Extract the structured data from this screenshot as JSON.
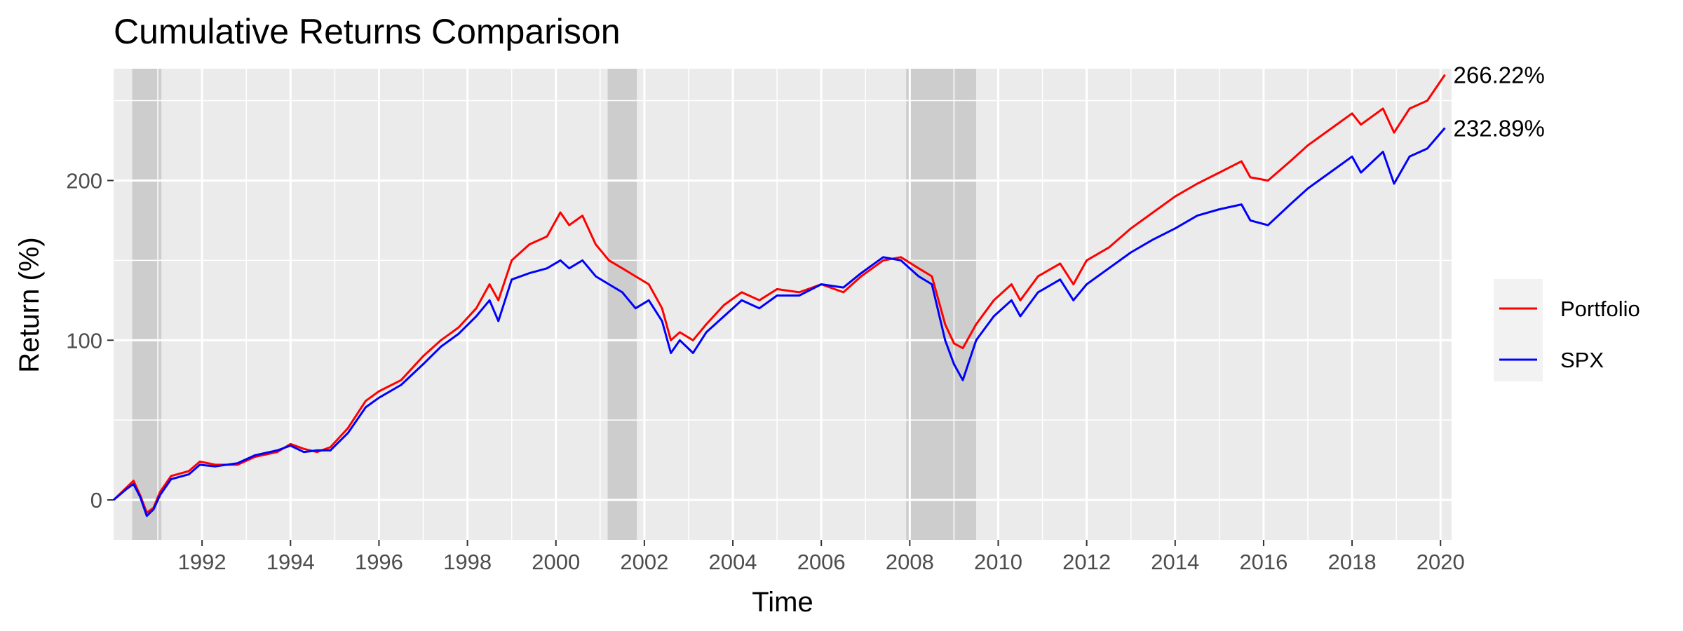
{
  "chart_data": {
    "type": "line",
    "title": "Cumulative Returns Comparison",
    "xlabel": "Time",
    "ylabel": "Return (%)",
    "xlim": [
      1990.0,
      2020.25
    ],
    "ylim": [
      -25,
      270
    ],
    "x_ticks": [
      "1992",
      "1994",
      "1996",
      "1998",
      "2000",
      "2002",
      "2004",
      "2006",
      "2008",
      "2010",
      "2012",
      "2014",
      "2016",
      "2018",
      "2020"
    ],
    "y_ticks": [
      "0",
      "100",
      "200"
    ],
    "grid": true,
    "legend_position": "right",
    "shaded_periods": [
      [
        1990.42,
        1991.08
      ],
      [
        2001.17,
        2001.83
      ],
      [
        2007.92,
        2009.5
      ]
    ],
    "end_labels": [
      {
        "series": "Portfolio",
        "text": "266.22%"
      },
      {
        "series": "SPX",
        "text": "232.89%"
      }
    ],
    "series": [
      {
        "name": "Portfolio",
        "color": "#ff0000",
        "points": [
          [
            1990.0,
            0
          ],
          [
            1990.3,
            8
          ],
          [
            1990.45,
            12
          ],
          [
            1990.6,
            3
          ],
          [
            1990.75,
            -8
          ],
          [
            1990.9,
            -5
          ],
          [
            1991.05,
            5
          ],
          [
            1991.3,
            15
          ],
          [
            1991.7,
            18
          ],
          [
            1991.95,
            24
          ],
          [
            1992.3,
            22
          ],
          [
            1992.8,
            22
          ],
          [
            1993.2,
            27
          ],
          [
            1993.7,
            30
          ],
          [
            1994.0,
            35
          ],
          [
            1994.3,
            32
          ],
          [
            1994.6,
            30
          ],
          [
            1994.9,
            33
          ],
          [
            1995.3,
            45
          ],
          [
            1995.7,
            62
          ],
          [
            1996.0,
            68
          ],
          [
            1996.5,
            75
          ],
          [
            1997.0,
            90
          ],
          [
            1997.4,
            100
          ],
          [
            1997.8,
            108
          ],
          [
            1998.2,
            120
          ],
          [
            1998.5,
            135
          ],
          [
            1998.7,
            125
          ],
          [
            1999.0,
            150
          ],
          [
            1999.4,
            160
          ],
          [
            1999.8,
            165
          ],
          [
            2000.1,
            180
          ],
          [
            2000.3,
            172
          ],
          [
            2000.6,
            178
          ],
          [
            2000.9,
            160
          ],
          [
            2001.2,
            150
          ],
          [
            2001.5,
            145
          ],
          [
            2001.8,
            140
          ],
          [
            2002.1,
            135
          ],
          [
            2002.4,
            120
          ],
          [
            2002.6,
            100
          ],
          [
            2002.8,
            105
          ],
          [
            2003.1,
            100
          ],
          [
            2003.4,
            110
          ],
          [
            2003.8,
            122
          ],
          [
            2004.2,
            130
          ],
          [
            2004.6,
            125
          ],
          [
            2005.0,
            132
          ],
          [
            2005.5,
            130
          ],
          [
            2006.0,
            135
          ],
          [
            2006.5,
            130
          ],
          [
            2006.9,
            140
          ],
          [
            2007.4,
            150
          ],
          [
            2007.8,
            152
          ],
          [
            2008.2,
            145
          ],
          [
            2008.5,
            140
          ],
          [
            2008.8,
            110
          ],
          [
            2009.0,
            98
          ],
          [
            2009.2,
            95
          ],
          [
            2009.5,
            110
          ],
          [
            2009.9,
            125
          ],
          [
            2010.3,
            135
          ],
          [
            2010.5,
            125
          ],
          [
            2010.9,
            140
          ],
          [
            2011.4,
            148
          ],
          [
            2011.7,
            135
          ],
          [
            2012.0,
            150
          ],
          [
            2012.5,
            158
          ],
          [
            2013.0,
            170
          ],
          [
            2013.5,
            180
          ],
          [
            2014.0,
            190
          ],
          [
            2014.5,
            198
          ],
          [
            2015.0,
            205
          ],
          [
            2015.5,
            212
          ],
          [
            2015.7,
            202
          ],
          [
            2016.1,
            200
          ],
          [
            2016.6,
            212
          ],
          [
            2017.0,
            222
          ],
          [
            2017.5,
            232
          ],
          [
            2018.0,
            242
          ],
          [
            2018.2,
            235
          ],
          [
            2018.7,
            245
          ],
          [
            2018.95,
            230
          ],
          [
            2019.3,
            245
          ],
          [
            2019.7,
            250
          ],
          [
            2020.1,
            266.22
          ]
        ]
      },
      {
        "name": "SPX",
        "color": "#0000ff",
        "points": [
          [
            1990.0,
            0
          ],
          [
            1990.3,
            7
          ],
          [
            1990.45,
            10
          ],
          [
            1990.6,
            2
          ],
          [
            1990.75,
            -10
          ],
          [
            1990.9,
            -6
          ],
          [
            1991.05,
            3
          ],
          [
            1991.3,
            13
          ],
          [
            1991.7,
            16
          ],
          [
            1991.95,
            22
          ],
          [
            1992.3,
            21
          ],
          [
            1992.8,
            23
          ],
          [
            1993.2,
            28
          ],
          [
            1993.7,
            31
          ],
          [
            1994.0,
            34
          ],
          [
            1994.3,
            30
          ],
          [
            1994.6,
            31
          ],
          [
            1994.9,
            31
          ],
          [
            1995.3,
            42
          ],
          [
            1995.7,
            58
          ],
          [
            1996.0,
            64
          ],
          [
            1996.5,
            72
          ],
          [
            1997.0,
            85
          ],
          [
            1997.4,
            96
          ],
          [
            1997.8,
            104
          ],
          [
            1998.2,
            115
          ],
          [
            1998.5,
            125
          ],
          [
            1998.7,
            112
          ],
          [
            1999.0,
            138
          ],
          [
            1999.4,
            142
          ],
          [
            1999.8,
            145
          ],
          [
            2000.1,
            150
          ],
          [
            2000.3,
            145
          ],
          [
            2000.6,
            150
          ],
          [
            2000.9,
            140
          ],
          [
            2001.2,
            135
          ],
          [
            2001.5,
            130
          ],
          [
            2001.8,
            120
          ],
          [
            2002.1,
            125
          ],
          [
            2002.4,
            112
          ],
          [
            2002.6,
            92
          ],
          [
            2002.8,
            100
          ],
          [
            2003.1,
            92
          ],
          [
            2003.4,
            105
          ],
          [
            2003.8,
            115
          ],
          [
            2004.2,
            125
          ],
          [
            2004.6,
            120
          ],
          [
            2005.0,
            128
          ],
          [
            2005.5,
            128
          ],
          [
            2006.0,
            135
          ],
          [
            2006.5,
            133
          ],
          [
            2006.9,
            142
          ],
          [
            2007.4,
            152
          ],
          [
            2007.8,
            150
          ],
          [
            2008.2,
            140
          ],
          [
            2008.5,
            135
          ],
          [
            2008.8,
            100
          ],
          [
            2009.0,
            85
          ],
          [
            2009.2,
            75
          ],
          [
            2009.5,
            100
          ],
          [
            2009.9,
            115
          ],
          [
            2010.3,
            125
          ],
          [
            2010.5,
            115
          ],
          [
            2010.9,
            130
          ],
          [
            2011.4,
            138
          ],
          [
            2011.7,
            125
          ],
          [
            2012.0,
            135
          ],
          [
            2012.5,
            145
          ],
          [
            2013.0,
            155
          ],
          [
            2013.5,
            163
          ],
          [
            2014.0,
            170
          ],
          [
            2014.5,
            178
          ],
          [
            2015.0,
            182
          ],
          [
            2015.5,
            185
          ],
          [
            2015.7,
            175
          ],
          [
            2016.1,
            172
          ],
          [
            2016.6,
            185
          ],
          [
            2017.0,
            195
          ],
          [
            2017.5,
            205
          ],
          [
            2018.0,
            215
          ],
          [
            2018.2,
            205
          ],
          [
            2018.7,
            218
          ],
          [
            2018.95,
            198
          ],
          [
            2019.3,
            215
          ],
          [
            2019.7,
            220
          ],
          [
            2020.1,
            232.89
          ]
        ]
      }
    ]
  }
}
